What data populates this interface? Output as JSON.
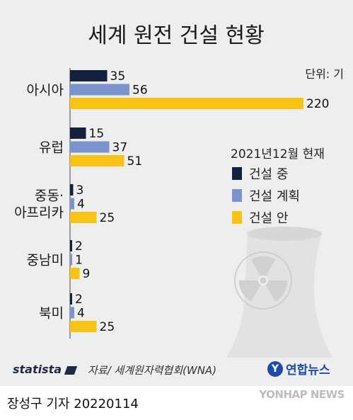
{
  "title": "세계 원전 건설 현황",
  "unit": "단위: 기",
  "legend": {
    "as_of": "2021년12월 현재",
    "items": [
      {
        "label": "건설 중",
        "color": "#13213c"
      },
      {
        "label": "건설 계획",
        "color": "#7b94cc"
      },
      {
        "label": "건설 안",
        "color": "#f9c313"
      }
    ]
  },
  "chart_data": {
    "type": "bar",
    "orientation": "horizontal",
    "title": "세계 원전 건설 현황",
    "categories": [
      "아시아",
      "유럽",
      "중동·아프리카",
      "중남미",
      "북미"
    ],
    "category_lines": [
      [
        "아시아"
      ],
      [
        "유럽"
      ],
      [
        "중동·",
        "아프리카"
      ],
      [
        "중남미"
      ],
      [
        "북미"
      ]
    ],
    "series": [
      {
        "name": "건설 중",
        "color": "#13213c",
        "values": [
          35,
          15,
          3,
          2,
          2
        ]
      },
      {
        "name": "건설 계획",
        "color": "#7b94cc",
        "values": [
          56,
          37,
          4,
          1,
          4
        ]
      },
      {
        "name": "건설 안",
        "color": "#f9c313",
        "values": [
          220,
          51,
          25,
          9,
          25
        ]
      }
    ],
    "xlim": [
      0,
      220
    ],
    "grid": false,
    "legend_position": "right"
  },
  "footer": {
    "brand": "statista",
    "source": "자료/ 세계원자력협회(WNA)",
    "agency": "연합뉴스",
    "byline": "장성구 기자  20220114",
    "watermark": "YONHAP NEWS"
  },
  "icons": [
    "radiation-icon",
    "cooling-tower-icon",
    "statista-logo-icon",
    "yonhap-logo-icon"
  ]
}
